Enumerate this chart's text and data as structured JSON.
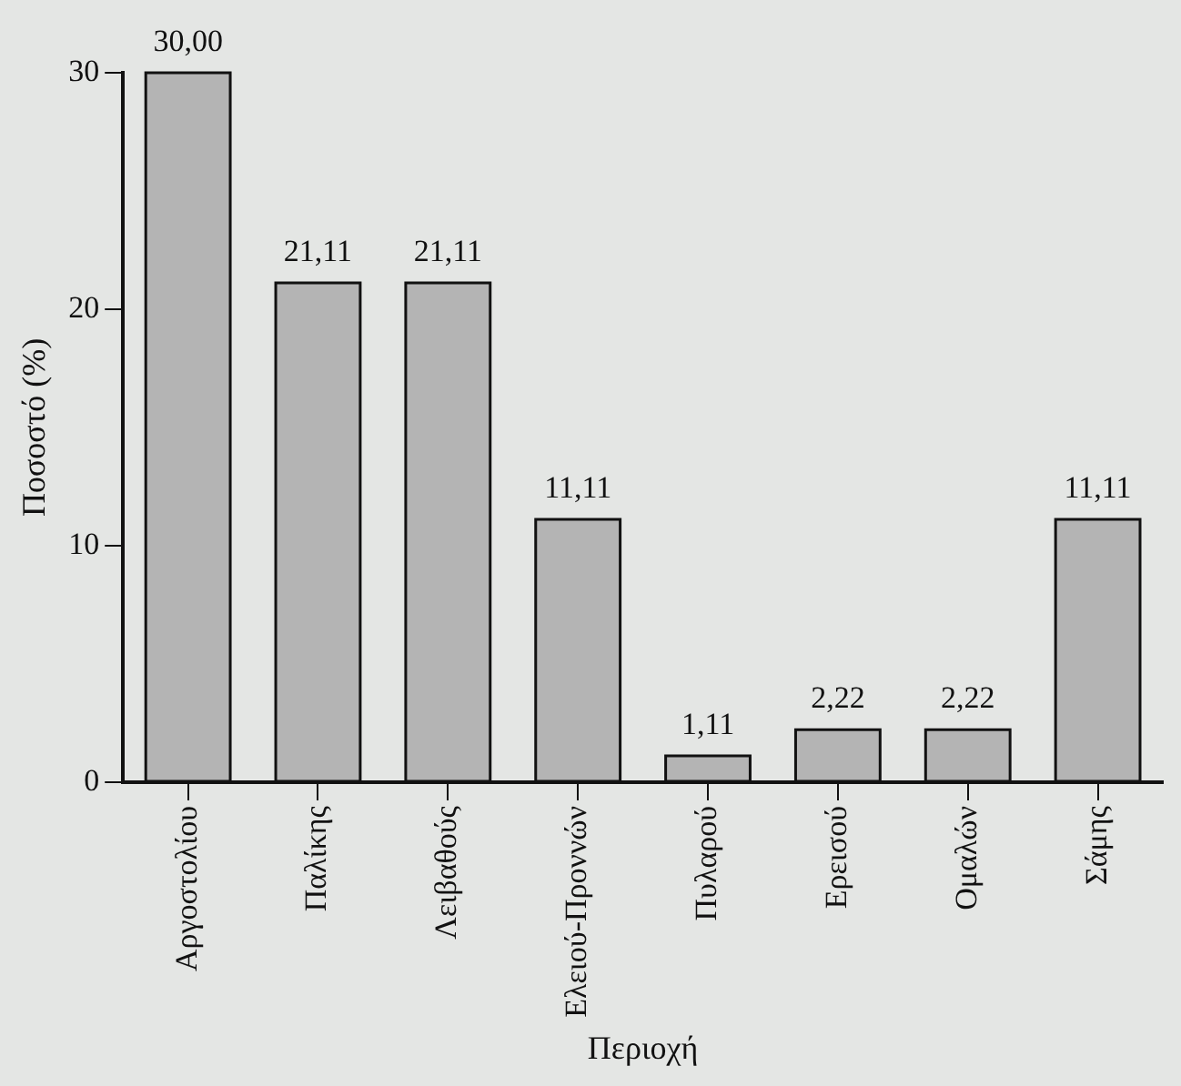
{
  "chart_data": {
    "type": "bar",
    "xlabel": "Περιοχή",
    "ylabel": "Ποσοστό (%)",
    "categories": [
      "Αργοστολίου",
      "Παλίκης",
      "Λειβαθούς",
      "Ελειού-Προννών",
      "Πυλαρού",
      "Ερεισού",
      "Ομαλών",
      "Σάμης"
    ],
    "values": [
      30.0,
      21.11,
      21.11,
      11.11,
      1.11,
      2.22,
      2.22,
      11.11
    ],
    "value_labels": [
      "30,00",
      "21,11",
      "21,11",
      "11,11",
      "1,11",
      "2,22",
      "2,22",
      "11,11"
    ],
    "color": "#b4b4b4",
    "ylim": [
      0,
      30
    ],
    "yticks": [
      0,
      10,
      20,
      30
    ],
    "grid": false,
    "legend": false
  }
}
